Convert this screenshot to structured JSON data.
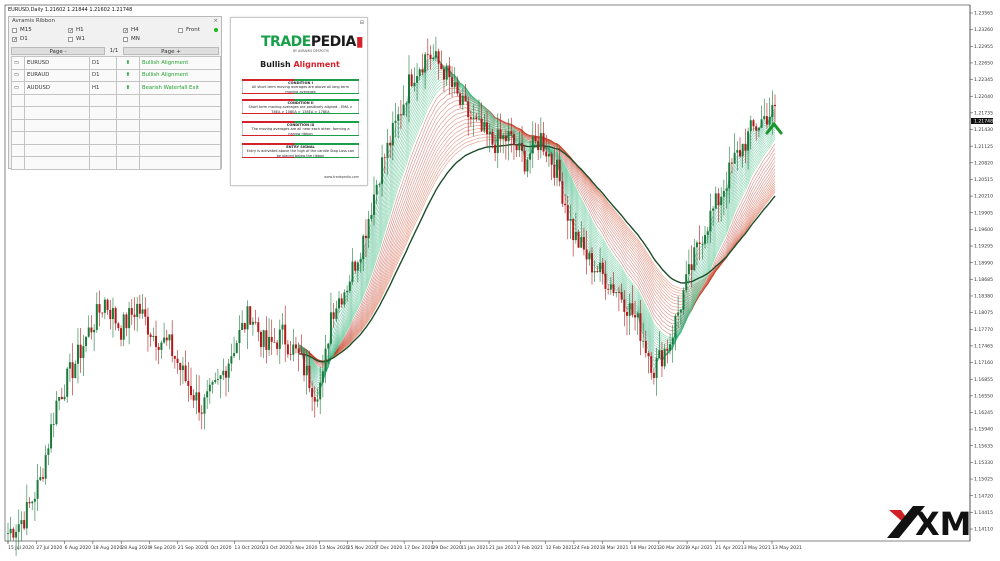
{
  "header": {
    "symbol_info": "EURUSD,Daily  1.21602 1.21844 1.21602 1.21748"
  },
  "panel": {
    "title": "Avramis Ribbon",
    "close_icon": "close-icon",
    "timeframes": [
      {
        "label": "M15",
        "checked": false
      },
      {
        "label": "H1",
        "checked": true
      },
      {
        "label": "H4",
        "checked": true
      },
      {
        "label": "Front",
        "checked": false
      },
      {
        "label": "D1",
        "checked": true
      },
      {
        "label": "W1",
        "checked": false
      },
      {
        "label": "MN",
        "checked": false
      }
    ],
    "pager": {
      "prev": "Page -",
      "current": "1/1",
      "next": "Page +"
    },
    "rows": [
      {
        "symbol": "EURUSD",
        "tf": "D1",
        "signal": "up-arrow-icon",
        "status": "Bullish Alignment"
      },
      {
        "symbol": "EURAUD",
        "tf": "D1",
        "signal": "up-arrow-icon",
        "status": "Bullish Alignment"
      },
      {
        "symbol": "AUDUSD",
        "tf": "H1",
        "signal": "up-arrow-icon",
        "status": "Bearish Waterfall Exit"
      }
    ],
    "empty_rows": 6,
    "status_color": "#1d9e2c"
  },
  "card": {
    "brand_part1": "TRADE",
    "brand_part2": "PEDIA",
    "tagline": "BY AVRAMIS DESPOTIS",
    "title_part1": "Bullish",
    "title_part2": "Alignment",
    "conditions": [
      {
        "heading": "CONDITION I",
        "text": "All short term moving averages are above all long term moving averages"
      },
      {
        "heading": "CONDITION II",
        "text": "Short term moving averages are positively aligned - EMA > 78EA > 108EA > 138EA > 178EA"
      },
      {
        "heading": "CONDITION III",
        "text": "The moving averages are all near each other, forming a narrow ribbon"
      },
      {
        "heading": "ENTRY SIGNAL",
        "text": "Entry is activated above the high of the candle Stop Loss can be placed below the ribbon"
      }
    ],
    "url": "www.tradepedia.com",
    "brand_green": "#17a049",
    "brand_red": "#d3222b"
  },
  "logo": {
    "text": "XM"
  },
  "chart_data": {
    "type": "candlestick",
    "symbol": "EURUSD",
    "timeframe": "Daily",
    "ohlc_last": {
      "open": 1.21602,
      "high": 1.21844,
      "low": 1.21602,
      "close": 1.21748
    },
    "current_price_label": "1.21748",
    "y_range": [
      1.1419,
      1.23565
    ],
    "y_ticks": [
      "1.23565",
      "1.23260",
      "1.22955",
      "1.22650",
      "1.22345",
      "1.22040",
      "1.21735",
      "1.21430",
      "1.21125",
      "1.20820",
      "1.20515",
      "1.20210",
      "1.19905",
      "1.19600",
      "1.19295",
      "1.18990",
      "1.18685",
      "1.18380",
      "1.18075",
      "1.17770",
      "1.17465",
      "1.17160",
      "1.16855",
      "1.16550",
      "1.16245",
      "1.15940",
      "1.15635",
      "1.15330",
      "1.15025",
      "1.14720",
      "1.14415",
      "1.14110"
    ],
    "x_ticks": [
      "15 Jul 2020",
      "27 Jul 2020",
      "6 Aug 2020",
      "18 Aug 2020",
      "28 Aug 2020",
      "9 Sep 2020",
      "21 Sep 2020",
      "1 Oct 2020",
      "13 Oct 2020",
      "23 Oct 2020",
      "3 Nov 2020",
      "13 Nov 2020",
      "25 Nov 2020",
      "7 Dec 2020",
      "17 Dec 2020",
      "29 Dec 2020",
      "11 Jan 2021",
      "21 Jan 2021",
      "2 Feb 2021",
      "12 Feb 2021",
      "24 Feb 2021",
      "8 Mar 2021",
      "18 Mar 2021",
      "30 Mar 2021",
      "9 Apr 2021",
      "21 Apr 2021",
      "3 May 2021",
      "13 May 2021"
    ],
    "close_path": [
      [
        0,
        1.1428
      ],
      [
        6,
        1.1455
      ],
      [
        12,
        1.152
      ],
      [
        18,
        1.166
      ],
      [
        24,
        1.172
      ],
      [
        30,
        1.1785
      ],
      [
        36,
        1.184
      ],
      [
        42,
        1.179
      ],
      [
        48,
        1.183
      ],
      [
        54,
        1.178
      ],
      [
        60,
        1.176
      ],
      [
        66,
        1.17
      ],
      [
        72,
        1.165
      ],
      [
        78,
        1.169
      ],
      [
        84,
        1.176
      ],
      [
        90,
        1.182
      ],
      [
        96,
        1.1755
      ],
      [
        102,
        1.178
      ],
      [
        108,
        1.174
      ],
      [
        114,
        1.168
      ],
      [
        117,
        1.17
      ],
      [
        120,
        1.182
      ],
      [
        126,
        1.187
      ],
      [
        132,
        1.195
      ],
      [
        138,
        1.207
      ],
      [
        144,
        1.215
      ],
      [
        150,
        1.224
      ],
      [
        156,
        1.228
      ],
      [
        162,
        1.225
      ],
      [
        168,
        1.219
      ],
      [
        174,
        1.215
      ],
      [
        180,
        1.212
      ],
      [
        186,
        1.213
      ],
      [
        192,
        1.209
      ],
      [
        198,
        1.213
      ],
      [
        204,
        1.207
      ],
      [
        210,
        1.196
      ],
      [
        216,
        1.191
      ],
      [
        222,
        1.188
      ],
      [
        228,
        1.185
      ],
      [
        234,
        1.18
      ],
      [
        240,
        1.172
      ],
      [
        246,
        1.177
      ],
      [
        252,
        1.187
      ],
      [
        258,
        1.196
      ],
      [
        264,
        1.202
      ],
      [
        270,
        1.209
      ],
      [
        276,
        1.214
      ],
      [
        282,
        1.217
      ],
      [
        285,
        1.2175
      ]
    ],
    "ribbon_fast_color": "#1fa86a",
    "ribbon_slow_color": "#d0451e",
    "bull_candle_color": "#1b7a3b",
    "bear_candle_color": "#b11a1a"
  }
}
